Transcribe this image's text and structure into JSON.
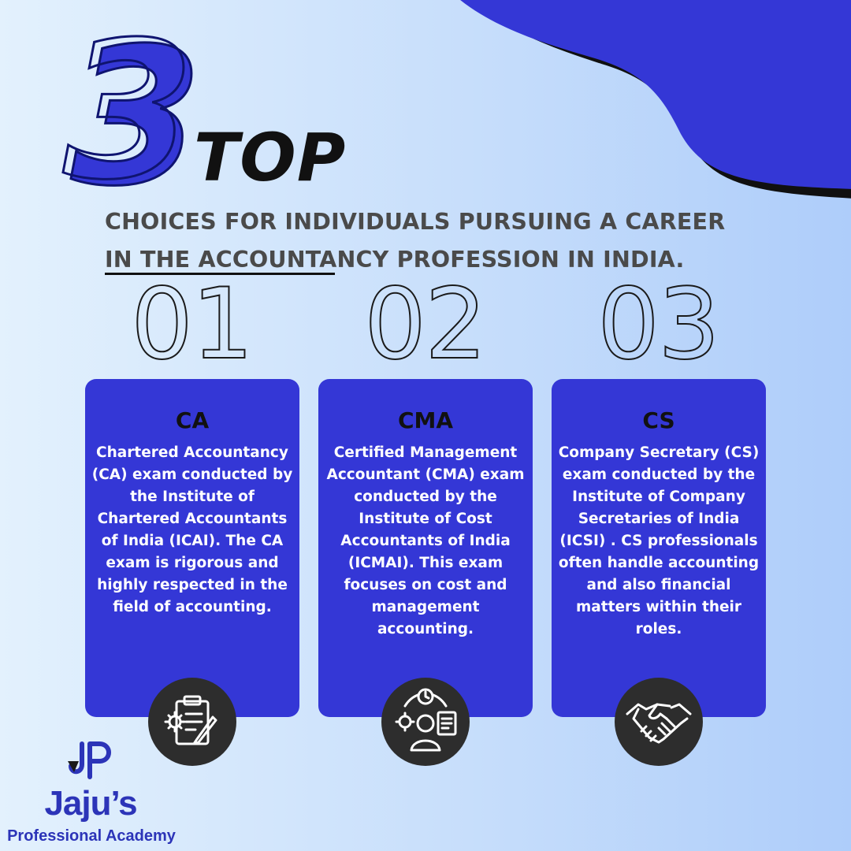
{
  "heading": {
    "number": "3",
    "top_word": "TOP",
    "line1": "CHOICES FOR INDIVIDUALS PURSUING A CAREER",
    "line2": "IN THE ACCOUNTANCY PROFESSION IN INDIA."
  },
  "cards": [
    {
      "number": "01",
      "title": "CA",
      "description": "Chartered Accountancy (CA) exam conducted by the Institute of Chartered Accountants of India (ICAI). The CA exam is rigorous and highly respected in the field of accounting.",
      "icon": "clipboard-gear-pencil-icon"
    },
    {
      "number": "02",
      "title": "CMA",
      "description": "Certified Management Accountant (CMA) exam conducted by the Institute of Cost Accountants of India (ICMAI). This exam focuses on cost and management accounting.",
      "icon": "person-gear-clock-checklist-icon"
    },
    {
      "number": "03",
      "title": "CS",
      "description": "Company Secretary (CS) exam conducted by the Institute of Company Secretaries of India (ICSI) . CS professionals often handle accounting and also financial matters within their roles.",
      "icon": "handshake-icon"
    }
  ],
  "brand": {
    "name": "Jaju’s",
    "subtitle": "Professional Academy",
    "logo": "jp-monogram-logo"
  },
  "colors": {
    "accent": "#3437d6",
    "background_start": "#e3f1fd",
    "background_end": "#aecdfa",
    "icon_circle": "#2d2d2d",
    "brand_text": "#2c34b8"
  }
}
